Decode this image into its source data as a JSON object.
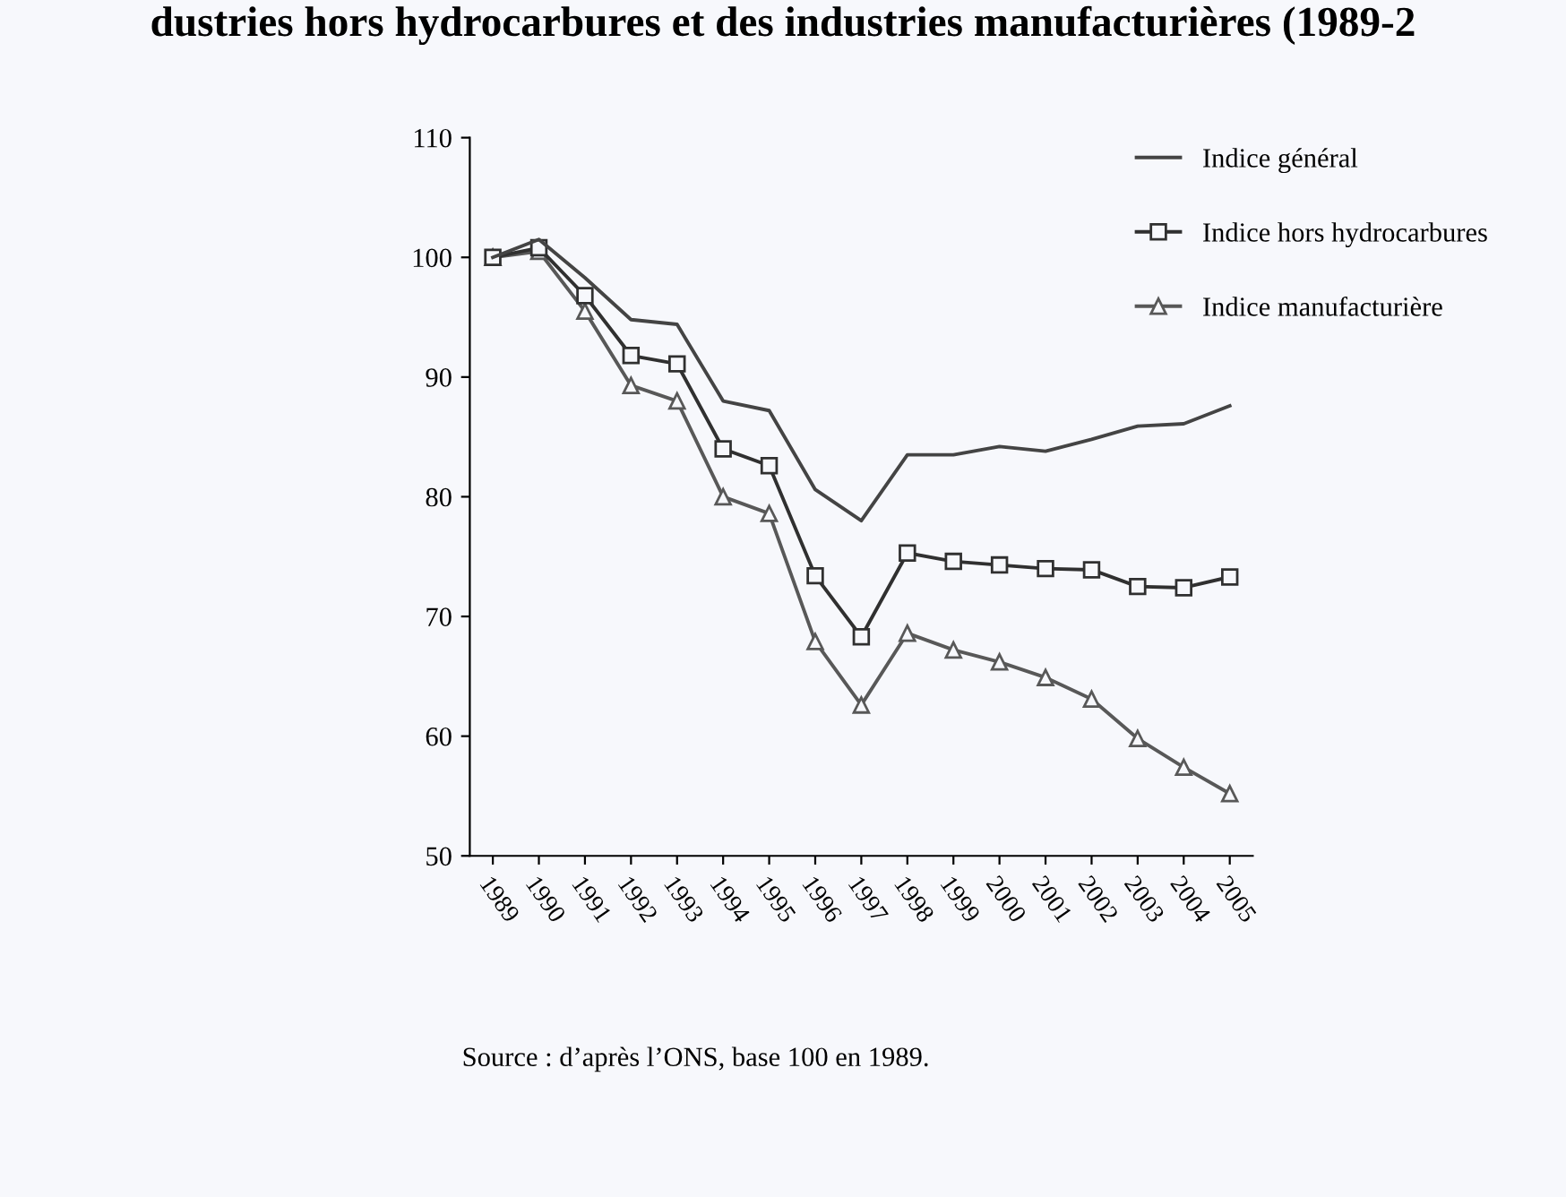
{
  "chart_data": {
    "type": "line",
    "title": "dustries hors hydrocarbures et des industries manufacturières (1989-2",
    "categories": [
      "1989",
      "1990",
      "1991",
      "1992",
      "1993",
      "1994",
      "1995",
      "1996",
      "1997",
      "1998",
      "1999",
      "2000",
      "2001",
      "2002",
      "2003",
      "2004",
      "2005"
    ],
    "series": [
      {
        "name": "Indice général",
        "color": "#444444",
        "marker": "none",
        "values": [
          100,
          101.5,
          98.3,
          94.8,
          94.4,
          88,
          87.2,
          80.6,
          78,
          83.5,
          83.5,
          84.2,
          83.8,
          84.8,
          85.9,
          86.1,
          87.6
        ]
      },
      {
        "name": "Indice hors hydrocarbures",
        "color": "#303030",
        "marker": "square",
        "values": [
          100,
          100.8,
          96.8,
          91.8,
          91.1,
          84,
          82.6,
          73.4,
          68.3,
          75.3,
          74.6,
          74.3,
          74,
          73.9,
          72.5,
          72.4,
          73.3
        ]
      },
      {
        "name": "Indice manufacturière",
        "color": "#585858",
        "marker": "triangle",
        "values": [
          100,
          100.5,
          95.5,
          89.3,
          88,
          80,
          78.6,
          67.9,
          62.6,
          68.6,
          67.2,
          66.2,
          64.9,
          63.1,
          59.8,
          57.4,
          55.2
        ]
      }
    ],
    "ylim": [
      50,
      110
    ],
    "yticks": [
      50,
      60,
      70,
      80,
      90,
      100,
      110
    ],
    "grid": false,
    "legend": "top right",
    "line_style": "solid",
    "annotations": [
      "Source : d’après l’ONS, base 100 en 1989."
    ]
  }
}
